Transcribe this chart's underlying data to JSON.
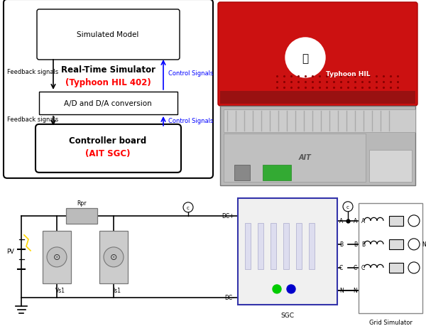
{
  "fig_width": 6.0,
  "fig_height": 4.6,
  "dpi": 100,
  "bg_color": "#ffffff",
  "top_bg": "#d8d8d8",
  "red_color": "#ff0000",
  "blue_color": "#0000ff",
  "black_color": "#000000",
  "sim_inner_text": "Simulated Model",
  "sim_text1": "Real-Time Simulator",
  "sim_text2": "(Typhoon HIL 402)",
  "ad_text": "A/D and D/A conversion",
  "ctrl_text1": "Controller board",
  "ctrl_text2": "(AIT SGC)",
  "feedback1_text": "Feedback signals",
  "control1_text": "Control Signals",
  "feedback2_text": "Feedback signals",
  "control2_text": "Control Signals",
  "sgc_label": "SGC",
  "grid_label": "Grid Simulator",
  "pv_label": "PV",
  "vs1_label": "Vs1",
  "is1_label": "Is1",
  "rpr_label": "Rpr",
  "dc_plus": "DC+",
  "dc_minus": "DC-"
}
